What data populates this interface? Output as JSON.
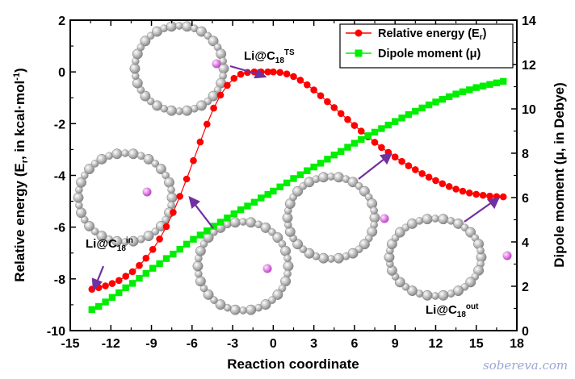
{
  "chart_data": {
    "type": "scatter",
    "xlabel": "Reaction coordinate",
    "ylabel": "Relative energy (E",
    "ylabel_sub": "r",
    "ylabel_tail": ", in kcal·mol",
    "ylabel_sup": "-1",
    "ylabel_end": ")",
    "y2label": "Dipole moment (μ, in Debye)",
    "xlim": [
      -15,
      18
    ],
    "ylim": [
      -10,
      2
    ],
    "y2lim": [
      0,
      14
    ],
    "xticks": [
      "-15",
      "-12",
      "-9",
      "-6",
      "-3",
      "0",
      "3",
      "6",
      "9",
      "12",
      "15",
      "18"
    ],
    "yticks": [
      "-10",
      "-8",
      "-6",
      "-4",
      "-2",
      "0",
      "2"
    ],
    "y2ticks": [
      "0",
      "2",
      "4",
      "6",
      "8",
      "10",
      "12",
      "14"
    ],
    "legend_position": "top-right",
    "series": [
      {
        "name": "Relative energy (E",
        "name_sub": "r",
        "name_end": ")",
        "axis": "left",
        "color": "#ff0000",
        "marker": "circle",
        "x": [
          -13.4,
          -12.9,
          -12.4,
          -11.9,
          -11.4,
          -10.9,
          -10.4,
          -9.9,
          -9.4,
          -8.9,
          -8.4,
          -7.9,
          -7.4,
          -6.9,
          -6.4,
          -5.9,
          -5.4,
          -4.9,
          -4.4,
          -3.9,
          -3.4,
          -2.9,
          -2.4,
          -1.9,
          -1.4,
          -0.9,
          -0.4,
          0.0,
          0.5,
          1.0,
          1.5,
          2.0,
          2.5,
          3.0,
          3.5,
          4.0,
          4.5,
          5.0,
          5.5,
          6.0,
          6.5,
          7.0,
          7.5,
          8.0,
          8.5,
          9.0,
          9.5,
          10.0,
          10.5,
          11.0,
          11.5,
          12.0,
          12.5,
          13.0,
          13.5,
          14.0,
          14.5,
          15.0,
          15.5,
          16.0,
          16.5,
          17.0
        ],
        "y": [
          -8.4,
          -8.34,
          -8.27,
          -8.18,
          -8.06,
          -7.9,
          -7.72,
          -7.48,
          -7.2,
          -6.86,
          -6.46,
          -5.98,
          -5.43,
          -4.81,
          -4.14,
          -3.43,
          -2.71,
          -2.02,
          -1.4,
          -0.9,
          -0.52,
          -0.25,
          -0.09,
          -0.02,
          0.0,
          0.0,
          0.0,
          0.0,
          -0.02,
          -0.08,
          -0.18,
          -0.32,
          -0.5,
          -0.7,
          -0.92,
          -1.15,
          -1.38,
          -1.61,
          -1.84,
          -2.07,
          -2.29,
          -2.51,
          -2.72,
          -2.92,
          -3.11,
          -3.29,
          -3.46,
          -3.63,
          -3.78,
          -3.93,
          -4.07,
          -4.2,
          -4.32,
          -4.43,
          -4.53,
          -4.61,
          -4.68,
          -4.73,
          -4.77,
          -4.8,
          -4.82,
          -4.83
        ]
      },
      {
        "name": "Dipole moment (μ)",
        "axis": "right",
        "color": "#00ee00",
        "marker": "square",
        "x": [
          -13.4,
          -12.9,
          -12.4,
          -11.9,
          -11.4,
          -10.9,
          -10.4,
          -9.9,
          -9.4,
          -8.9,
          -8.4,
          -7.9,
          -7.4,
          -6.9,
          -6.4,
          -5.9,
          -5.4,
          -4.9,
          -4.4,
          -3.9,
          -3.4,
          -2.9,
          -2.4,
          -1.9,
          -1.4,
          -0.9,
          -0.4,
          0.0,
          0.5,
          1.0,
          1.5,
          2.0,
          2.5,
          3.0,
          3.5,
          4.0,
          4.5,
          5.0,
          5.5,
          6.0,
          6.5,
          7.0,
          7.5,
          8.0,
          8.5,
          9.0,
          9.5,
          10.0,
          10.5,
          11.0,
          11.5,
          12.0,
          12.5,
          13.0,
          13.5,
          14.0,
          14.5,
          15.0,
          15.5,
          16.0,
          16.5,
          17.0
        ],
        "y": [
          0.95,
          1.09,
          1.29,
          1.5,
          1.71,
          1.93,
          2.13,
          2.36,
          2.58,
          2.81,
          3.02,
          3.25,
          3.45,
          3.67,
          3.9,
          4.12,
          4.31,
          4.5,
          4.71,
          4.89,
          5.08,
          5.27,
          5.45,
          5.62,
          5.79,
          5.98,
          6.14,
          6.29,
          6.48,
          6.66,
          6.86,
          7.03,
          7.21,
          7.38,
          7.55,
          7.73,
          7.92,
          8.08,
          8.27,
          8.45,
          8.62,
          8.79,
          8.95,
          9.11,
          9.27,
          9.43,
          9.59,
          9.74,
          9.89,
          10.04,
          10.18,
          10.31,
          10.43,
          10.55,
          10.67,
          10.77,
          10.86,
          10.96,
          11.03,
          11.1,
          11.17,
          11.24
        ]
      }
    ],
    "annotations": [
      {
        "text": "Li@C",
        "sub": "18",
        "sup": "TS"
      },
      {
        "text": "Li@C",
        "sub": "18",
        "sup": "in"
      },
      {
        "text": "Li@C",
        "sub": "18",
        "sup": "out"
      }
    ]
  },
  "watermark": "sobereva.com"
}
